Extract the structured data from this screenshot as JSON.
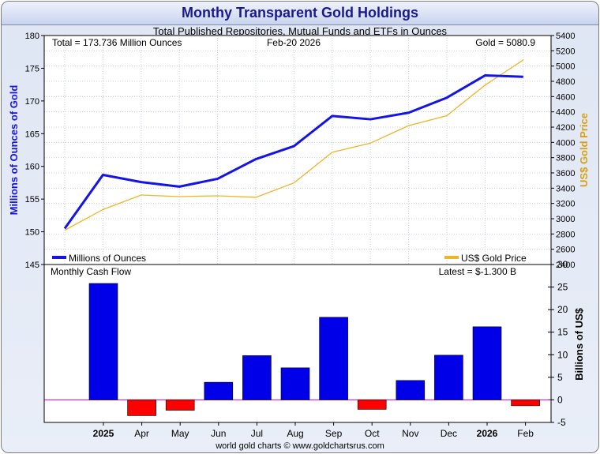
{
  "title": "Monthy Transparent Gold Holdings",
  "subtitle": "Total Published Repositories, Mutual Funds and ETFs in Ounces",
  "footer": "world gold charts © www.goldchartsrus.com",
  "colors": {
    "holdings": "#1414e6",
    "gold_price": "#f0b428",
    "cash_positive": "#0000e8",
    "cash_negative": "#ff0000",
    "zero_line": "#d400d4",
    "title": "#1a1a8c",
    "left_axis_label": "#1414e6",
    "right_axis_label": "#d4a017"
  },
  "chart_data": [
    {
      "type": "line",
      "name": "holdings_panel",
      "info_left": "Total = 173.736 Million Ounces",
      "info_center": "Feb-20  2026",
      "info_right": "Gold = 5080.9",
      "ylabel": "Millions of Ounces of Gold",
      "y2label": "US$ Gold Price",
      "ylim": [
        145,
        180
      ],
      "y_ticks": [
        "145",
        "150",
        "155",
        "160",
        "165",
        "170",
        "175",
        "180"
      ],
      "y2lim": [
        2400,
        5400
      ],
      "y2_ticks": [
        "2400",
        "2600",
        "2800",
        "3000",
        "3200",
        "3400",
        "3600",
        "3800",
        "4000",
        "4200",
        "4400",
        "4600",
        "4800",
        "5000",
        "5200",
        "5400"
      ],
      "grid": true,
      "legend": [
        "Millions of Ounces",
        "US$ Gold Price"
      ],
      "series": [
        {
          "name": "Millions of Ounces",
          "axis": "left",
          "x": [
            0,
            1,
            2,
            3,
            4,
            5,
            6,
            7,
            8,
            9,
            10,
            11,
            12
          ],
          "values": [
            150.5,
            158.7,
            157.6,
            156.9,
            158.1,
            161.1,
            163.1,
            167.7,
            167.2,
            168.2,
            170.5,
            173.9,
            173.7
          ]
        },
        {
          "name": "US$ Gold Price",
          "axis": "right",
          "x": [
            0,
            1,
            2,
            3,
            4,
            5,
            6,
            7,
            8,
            9,
            10,
            11,
            12
          ],
          "values": [
            2850,
            3120,
            3310,
            3290,
            3300,
            3280,
            3470,
            3870,
            3990,
            4220,
            4350,
            4750,
            5080
          ]
        }
      ]
    },
    {
      "type": "bar",
      "name": "cash_flow_panel",
      "title": "Monthly Cash Flow",
      "latest": "Latest = $-1.300 B",
      "ylabel": "Billions of US$",
      "ylim": [
        -5,
        30
      ],
      "y_ticks": [
        "-5",
        "0",
        "5",
        "10",
        "15",
        "20",
        "25",
        "30"
      ],
      "categories": [
        "2025",
        "Apr",
        "May",
        "Jun",
        "Jul",
        "Aug",
        "Sep",
        "Oct",
        "Nov",
        "Dec",
        "2026",
        "Feb"
      ],
      "bold_categories": [
        "2025",
        "2026"
      ],
      "values": [
        25.8,
        -3.5,
        -2.3,
        3.9,
        9.8,
        7.1,
        18.3,
        -2.1,
        4.3,
        9.9,
        16.2,
        -1.3
      ]
    }
  ]
}
